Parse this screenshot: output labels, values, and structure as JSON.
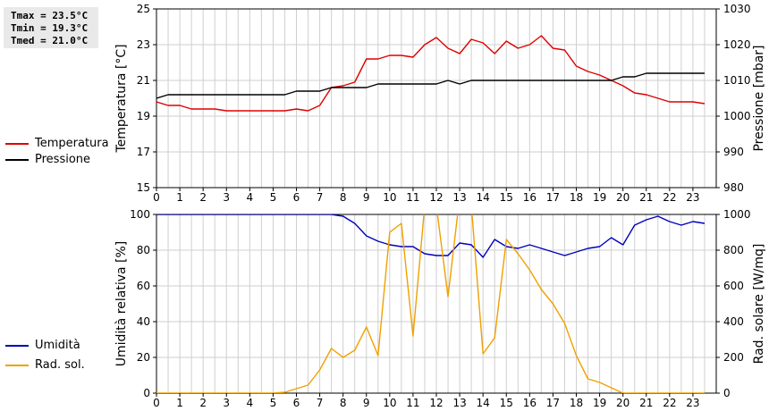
{
  "stats": {
    "tmax": "Tmax = 23.5°C",
    "tmin": "Tmin = 19.3°C",
    "tmed": "Tmed = 21.0°C"
  },
  "legends": {
    "top": [
      {
        "label": "Temperatura",
        "color": "#dd0000"
      },
      {
        "label": "Pressione",
        "color": "#000000"
      }
    ],
    "bottom": [
      {
        "label": "Umidità",
        "color": "#0000bb"
      },
      {
        "label": "Rad. sol.",
        "color": "#f0a000"
      }
    ]
  },
  "chart_data": [
    {
      "type": "line",
      "ylabel": "Temperatura [°C]",
      "y2label": "Pressione [mbar]",
      "xlim": [
        0,
        24
      ],
      "ylim": [
        15,
        25
      ],
      "y2lim": [
        980,
        1030
      ],
      "xticks": [
        "0",
        "1",
        "2",
        "3",
        "4",
        "5",
        "6",
        "7",
        "8",
        "9",
        "10",
        "11",
        "12",
        "13",
        "14",
        "15",
        "16",
        "17",
        "18",
        "19",
        "20",
        "21",
        "22",
        "23"
      ],
      "yticks": [
        "15",
        "17",
        "19",
        "21",
        "23",
        "25"
      ],
      "y2ticks": [
        "980",
        "990",
        "1000",
        "1010",
        "1020",
        "1030"
      ],
      "grid": true,
      "series": [
        {
          "name": "Temperatura",
          "axis": "left",
          "color": "#dd0000",
          "x": [
            0,
            0.5,
            1,
            1.5,
            2,
            2.5,
            3,
            3.5,
            4,
            4.5,
            5,
            5.5,
            6,
            6.5,
            7,
            7.5,
            8,
            8.5,
            9,
            9.5,
            10,
            10.5,
            11,
            11.5,
            12,
            12.5,
            13,
            13.5,
            14,
            14.5,
            15,
            15.5,
            16,
            16.5,
            17,
            17.5,
            18,
            18.5,
            19,
            19.5,
            20,
            20.5,
            21,
            21.5,
            22,
            22.5,
            23,
            23.5
          ],
          "values": [
            19.8,
            19.6,
            19.6,
            19.4,
            19.4,
            19.4,
            19.3,
            19.3,
            19.3,
            19.3,
            19.3,
            19.3,
            19.4,
            19.3,
            19.6,
            20.6,
            20.7,
            20.9,
            22.2,
            22.2,
            22.4,
            22.4,
            22.3,
            23.0,
            23.4,
            22.8,
            22.5,
            23.3,
            23.1,
            22.5,
            23.2,
            22.8,
            23.0,
            23.5,
            22.8,
            22.7,
            21.8,
            21.5,
            21.3,
            21.0,
            20.7,
            20.3,
            20.2,
            20.0,
            19.8,
            19.8,
            19.8,
            19.7
          ]
        },
        {
          "name": "Pressione",
          "axis": "right",
          "color": "#000000",
          "x": [
            0,
            0.5,
            1,
            1.5,
            2,
            2.5,
            3,
            3.5,
            4,
            4.5,
            5,
            5.5,
            6,
            6.5,
            7,
            7.5,
            8,
            8.5,
            9,
            9.5,
            10,
            10.5,
            11,
            11.5,
            12,
            12.5,
            13,
            13.5,
            14,
            14.5,
            15,
            15.5,
            16,
            16.5,
            17,
            17.5,
            18,
            18.5,
            19,
            19.5,
            20,
            20.5,
            21,
            21.5,
            22,
            22.5,
            23,
            23.5
          ],
          "values": [
            1005,
            1006,
            1006,
            1006,
            1006,
            1006,
            1006,
            1006,
            1006,
            1006,
            1006,
            1006,
            1007,
            1007,
            1007,
            1008,
            1008,
            1008,
            1008,
            1009,
            1009,
            1009,
            1009,
            1009,
            1009,
            1010,
            1009,
            1010,
            1010,
            1010,
            1010,
            1010,
            1010,
            1010,
            1010,
            1010,
            1010,
            1010,
            1010,
            1010,
            1011,
            1011,
            1012,
            1012,
            1012,
            1012,
            1012,
            1012
          ]
        }
      ]
    },
    {
      "type": "line",
      "ylabel": "Umidità relativa [%]",
      "y2label": "Rad. solare [W/mq]",
      "xlim": [
        0,
        24
      ],
      "ylim": [
        0,
        100
      ],
      "y2lim": [
        0,
        1000
      ],
      "xticks": [
        "0",
        "1",
        "2",
        "3",
        "4",
        "5",
        "6",
        "7",
        "8",
        "9",
        "10",
        "11",
        "12",
        "13",
        "14",
        "15",
        "16",
        "17",
        "18",
        "19",
        "20",
        "21",
        "22",
        "23"
      ],
      "yticks": [
        "0",
        "20",
        "40",
        "60",
        "80",
        "100"
      ],
      "y2ticks": [
        "0",
        "200",
        "400",
        "600",
        "800",
        "1000"
      ],
      "grid": true,
      "series": [
        {
          "name": "Umidità",
          "axis": "left",
          "color": "#0000bb",
          "x": [
            0,
            0.5,
            1,
            1.5,
            2,
            2.5,
            3,
            3.5,
            4,
            4.5,
            5,
            5.5,
            6,
            6.5,
            7,
            7.5,
            8,
            8.5,
            9,
            9.5,
            10,
            10.5,
            11,
            11.5,
            12,
            12.5,
            13,
            13.5,
            14,
            14.5,
            15,
            15.5,
            16,
            16.5,
            17,
            17.5,
            18,
            18.5,
            19,
            19.5,
            20,
            20.5,
            21,
            21.5,
            22,
            22.5,
            23,
            23.5
          ],
          "values": [
            100,
            100,
            100,
            100,
            100,
            100,
            100,
            100,
            100,
            100,
            100,
            100,
            100,
            100,
            100,
            100,
            99,
            95,
            88,
            85,
            83,
            82,
            82,
            78,
            77,
            77,
            84,
            83,
            76,
            86,
            82,
            81,
            83,
            81,
            79,
            77,
            79,
            81,
            82,
            87,
            83,
            94,
            97,
            99,
            96,
            94,
            96,
            95
          ]
        },
        {
          "name": "Rad. sol.",
          "axis": "right",
          "color": "#f0a000",
          "x": [
            0,
            0.5,
            1,
            1.5,
            2,
            2.5,
            3,
            3.5,
            4,
            4.5,
            5,
            5.5,
            6,
            6.5,
            7,
            7.5,
            8,
            8.5,
            9,
            9.5,
            10,
            10.5,
            11,
            11.5,
            12,
            12.5,
            13,
            13.5,
            14,
            14.5,
            15,
            15.5,
            16,
            16.5,
            17,
            17.5,
            18,
            18.5,
            19,
            19.5,
            20,
            20.5,
            21,
            21.5,
            22,
            22.5,
            23,
            23.5
          ],
          "values": [
            0,
            0,
            0,
            0,
            0,
            0,
            0,
            0,
            0,
            0,
            0,
            5,
            25,
            45,
            130,
            250,
            200,
            240,
            370,
            210,
            900,
            950,
            320,
            1050,
            1050,
            540,
            1100,
            1050,
            220,
            310,
            860,
            780,
            690,
            580,
            500,
            390,
            210,
            80,
            60,
            30,
            0,
            0,
            0,
            0,
            0,
            0,
            0,
            0
          ]
        }
      ]
    }
  ]
}
